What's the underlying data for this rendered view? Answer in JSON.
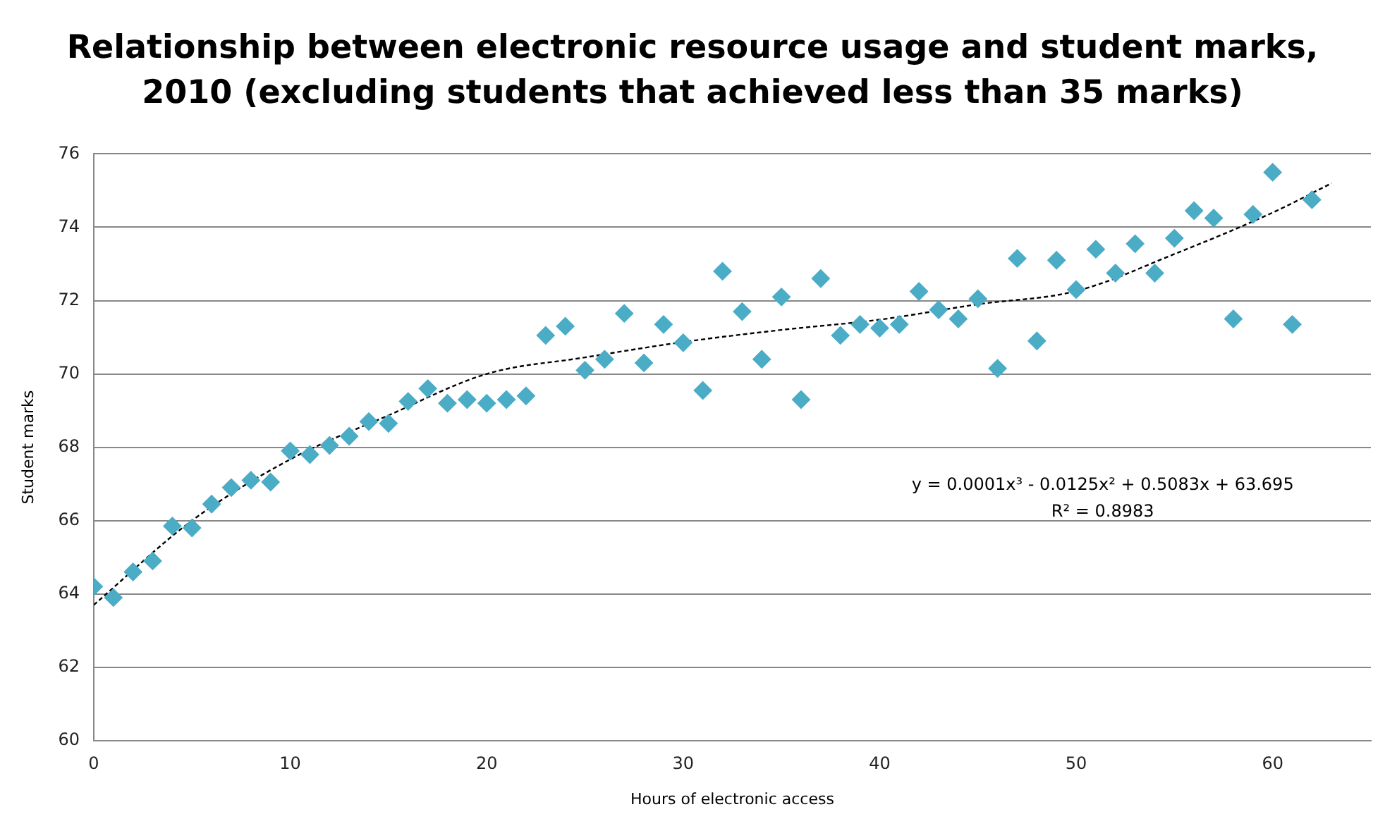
{
  "chart_data": {
    "type": "scatter",
    "title": "Relationship between electronic resource usage and student marks, 2010 (excluding students that achieved less than 35 marks)",
    "xlabel": "Hours of electronic access",
    "ylabel": "Student marks",
    "xlim": [
      0,
      65
    ],
    "xticks": [
      0,
      10,
      20,
      30,
      40,
      50,
      60
    ],
    "ylim": [
      60,
      76
    ],
    "yticks": [
      60,
      62,
      64,
      66,
      68,
      70,
      72,
      74,
      76
    ],
    "grid": "y",
    "legend": false,
    "annotations": [
      "y = 0.0001x³ - 0.0125x² + 0.5083x + 63.695",
      "R² = 0.8983"
    ],
    "series": [
      {
        "type": "scatter",
        "color": "#4bacc6",
        "marker": "diamond",
        "x": [
          0,
          1,
          2,
          3,
          4,
          5,
          6,
          7,
          8,
          9,
          10,
          11,
          12,
          13,
          14,
          15,
          16,
          17,
          18,
          19,
          20,
          21,
          22,
          23,
          24,
          25,
          26,
          27,
          28,
          29,
          30,
          31,
          32,
          33,
          34,
          35,
          36,
          37,
          38,
          39,
          40,
          41,
          42,
          43,
          44,
          45,
          46,
          47,
          48,
          49,
          50,
          51,
          52,
          53,
          54,
          55,
          56,
          57,
          58,
          59,
          60,
          61,
          62
        ],
        "values": [
          64.2,
          63.9,
          64.6,
          64.9,
          65.85,
          65.8,
          66.45,
          66.9,
          67.1,
          67.05,
          67.9,
          67.8,
          68.05,
          68.3,
          68.7,
          68.65,
          69.25,
          69.6,
          69.2,
          69.3,
          69.2,
          69.3,
          69.4,
          71.05,
          71.3,
          70.1,
          70.4,
          71.65,
          70.3,
          71.35,
          70.85,
          69.55,
          72.8,
          71.7,
          70.4,
          72.1,
          69.3,
          72.6,
          71.05,
          71.35,
          71.25,
          71.35,
          72.25,
          71.75,
          71.5,
          72.05,
          70.15,
          73.15,
          70.9,
          73.1,
          72.3,
          73.4,
          72.75,
          73.55,
          72.75,
          73.7,
          74.45,
          74.25,
          71.5,
          74.35,
          75.5,
          71.35,
          74.75
        ]
      },
      {
        "type": "line",
        "color": "#000000",
        "line_style": "dashed",
        "marker": "none",
        "x": [
          0,
          5,
          10,
          15,
          20,
          25,
          30,
          35,
          40,
          45,
          50,
          55,
          60,
          63
        ],
        "values": [
          63.7,
          66.0,
          67.67,
          68.87,
          70.0,
          70.45,
          70.87,
          71.2,
          71.48,
          71.9,
          72.26,
          73.27,
          74.4,
          75.2
        ]
      }
    ]
  }
}
